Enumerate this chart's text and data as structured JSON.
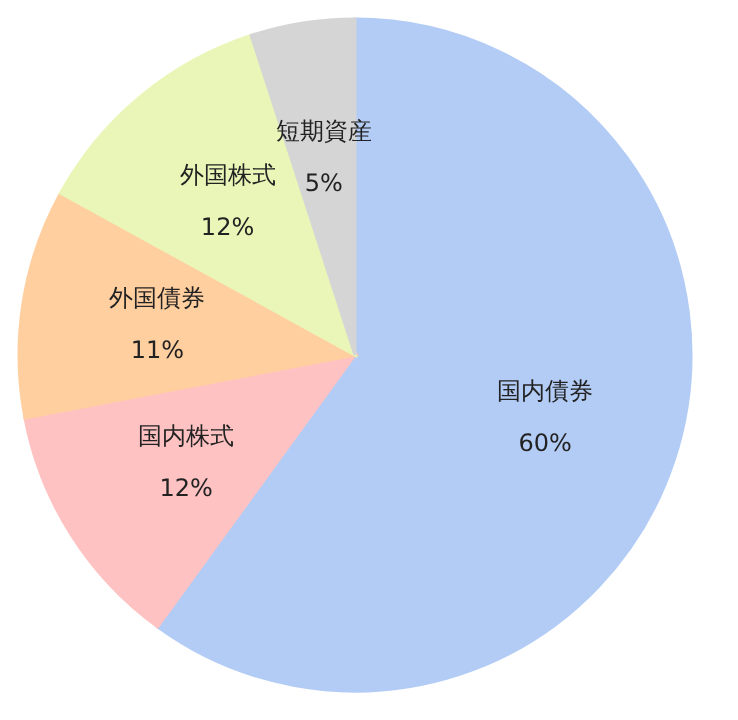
{
  "chart_data": {
    "type": "pie",
    "categories": [
      "国内債券",
      "国内株式",
      "外国債券",
      "外国株式",
      "短期資産"
    ],
    "values": [
      60,
      12,
      11,
      12,
      5
    ],
    "colors": [
      "#b3ccf5",
      "#ffc2c2",
      "#ffcf9f",
      "#e9f6b8",
      "#d5d5d5"
    ],
    "value_labels": [
      "60%",
      "12%",
      "11%",
      "12%",
      "5%"
    ],
    "legend": false
  }
}
